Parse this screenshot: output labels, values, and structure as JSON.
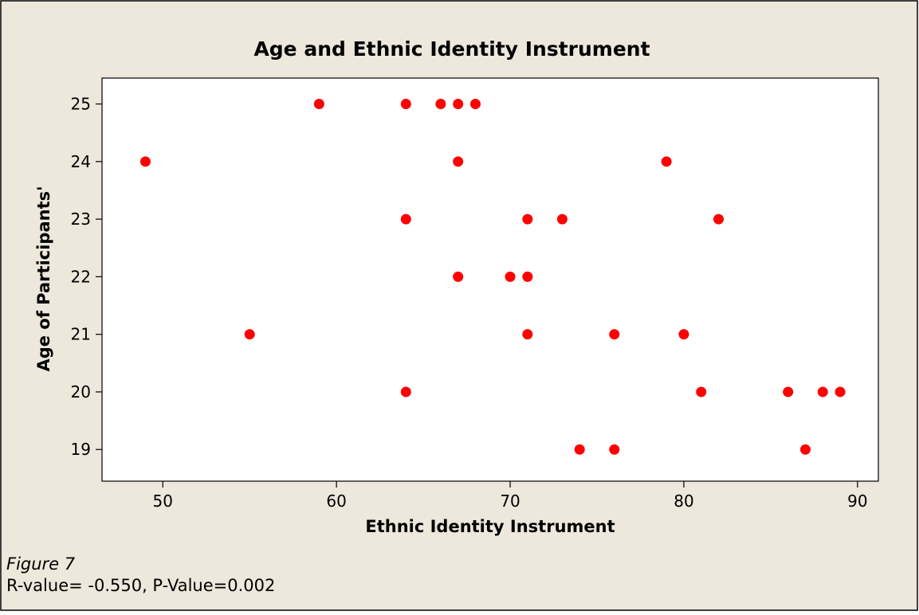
{
  "chart_data": {
    "type": "scatter",
    "title": "Age and Ethnic Identity Instrument",
    "xlabel": "Ethnic Identity Instrument",
    "ylabel": "Age of Participants'",
    "xlim": [
      46.5,
      91.2
    ],
    "ylim": [
      18.45,
      25.45
    ],
    "xticks": [
      50,
      60,
      70,
      80,
      90
    ],
    "yticks": [
      19,
      20,
      21,
      22,
      23,
      24,
      25
    ],
    "xtick_labels": [
      "50",
      "60",
      "70",
      "80",
      "90"
    ],
    "ytick_labels": [
      "19",
      "20",
      "21",
      "22",
      "23",
      "24",
      "25"
    ],
    "grid": false,
    "legend": "none",
    "marker_color": "#ff0000",
    "background_color": "#ede7dc",
    "plot_background_color": "#ffffff",
    "series": [
      {
        "x": [
          59,
          64,
          66,
          67,
          68,
          49,
          67,
          79,
          64,
          71,
          73,
          82,
          67,
          70,
          71,
          55,
          71,
          76,
          80,
          64,
          81,
          86,
          88,
          89,
          74,
          76,
          87
        ],
        "y": [
          25,
          25,
          25,
          25,
          25,
          24,
          24,
          24,
          23,
          23,
          23,
          23,
          22,
          22,
          22,
          21,
          21,
          21,
          21,
          20,
          20,
          20,
          20,
          20,
          19,
          19,
          19
        ]
      }
    ]
  },
  "caption": {
    "figure_label": "Figure 7",
    "stats": "R-value= -0.550, P-Value=0.002"
  }
}
